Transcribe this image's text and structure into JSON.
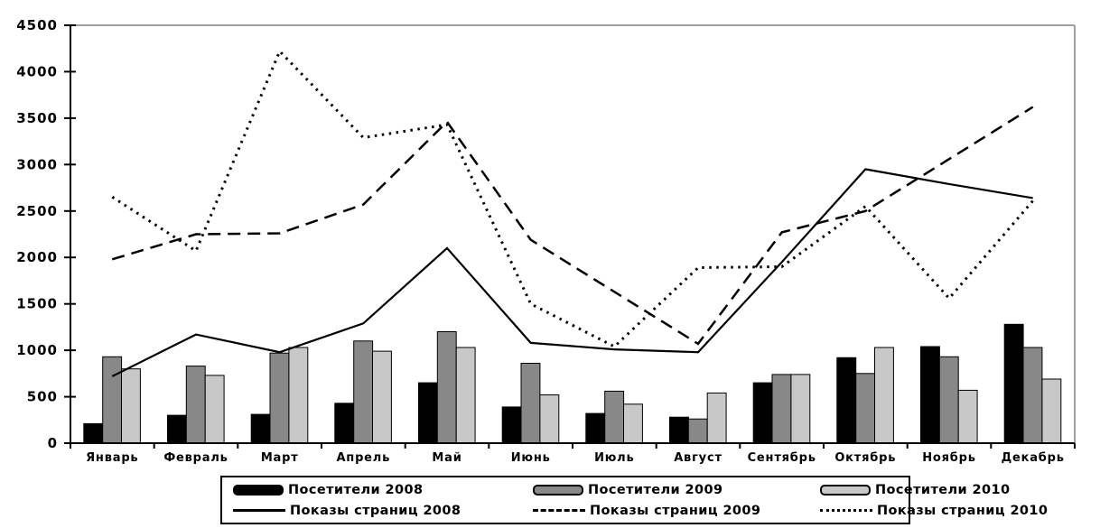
{
  "chart_data": {
    "type": "bar+line",
    "title": "",
    "months": [
      "Январь",
      "Февраль",
      "Март",
      "Апрель",
      "Май",
      "Июнь",
      "Июль",
      "Август",
      "Сентябрь",
      "Октябрь",
      "Ноябрь",
      "Декабрь"
    ],
    "y_axis": {
      "min": 0,
      "max": 4500,
      "step": 500,
      "ticks": [
        "0",
        "500",
        "1000",
        "1500",
        "2000",
        "2500",
        "3000",
        "3500",
        "4000",
        "4500"
      ]
    },
    "grid": "off",
    "frame_color": "#a0a0a0",
    "axis_color": "#000000",
    "bar_series": [
      {
        "name": "Посетители 2008",
        "color": "#000000",
        "values": [
          210,
          300,
          310,
          430,
          650,
          390,
          320,
          280,
          650,
          920,
          1040,
          1280
        ]
      },
      {
        "name": "Посетители 2009",
        "color": "#888888",
        "values": [
          930,
          830,
          970,
          1100,
          1200,
          860,
          560,
          260,
          740,
          750,
          930,
          1030
        ]
      },
      {
        "name": "Посетители 2010",
        "color": "#c8c8c8",
        "values": [
          800,
          730,
          1030,
          990,
          1030,
          520,
          420,
          540,
          740,
          1030,
          570,
          690
        ]
      }
    ],
    "line_series": [
      {
        "name": "Показы страниц 2008",
        "style": "solid",
        "color": "#000000",
        "values": [
          720,
          1170,
          980,
          1290,
          2100,
          1080,
          1010,
          980,
          1950,
          2950,
          2790,
          2640
        ]
      },
      {
        "name": "Показы страниц 2009",
        "style": "dashed",
        "color": "#000000",
        "values": [
          1980,
          2250,
          2260,
          2570,
          3460,
          2190,
          1630,
          1070,
          2270,
          2500,
          3060,
          3620
        ]
      },
      {
        "name": "Показы страниц 2010",
        "style": "dotted",
        "color": "#000000",
        "values": [
          2650,
          2070,
          4220,
          3290,
          3430,
          1500,
          1040,
          1890,
          1900,
          2550,
          1560,
          2610
        ]
      }
    ],
    "legend_position": "bottom"
  }
}
